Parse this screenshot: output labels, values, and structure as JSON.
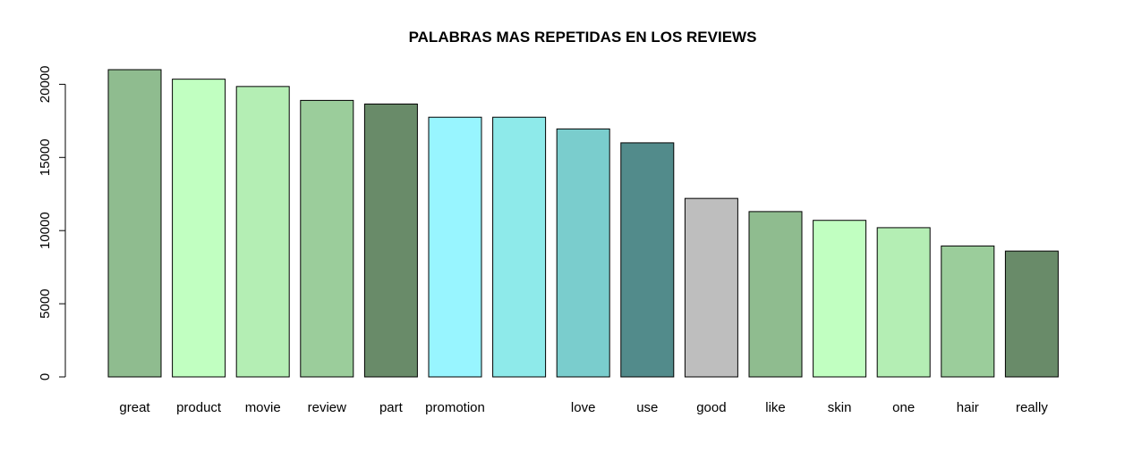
{
  "chart_data": {
    "type": "bar",
    "title": "PALABRAS MAS REPETIDAS EN LOS REVIEWS",
    "xlabel": "",
    "ylabel": "",
    "ylim": [
      0,
      21000
    ],
    "yticks": [
      0,
      5000,
      10000,
      15000,
      20000
    ],
    "yticks_labels": [
      "0",
      "5000",
      "10000",
      "15000",
      "20000"
    ],
    "grid": false,
    "categories": [
      "great",
      "product",
      "movie",
      "review",
      "part",
      "promotion",
      "",
      "love",
      "use",
      "good",
      "like",
      "skin",
      "one",
      "hair",
      "really"
    ],
    "values": [
      21000,
      20350,
      19850,
      18900,
      18650,
      17750,
      17750,
      16950,
      16000,
      12200,
      11300,
      10700,
      10200,
      8950,
      8600
    ],
    "colors": [
      "#8fbc8f",
      "#c1ffc1",
      "#b4eeb4",
      "#9bcd9b",
      "#698b69",
      "#98f5ff",
      "#8eeaea",
      "#7acdcd",
      "#528b8b",
      "#bebebe",
      "#8fbc8f",
      "#c1ffc1",
      "#b4eeb4",
      "#9bcd9b",
      "#698b69"
    ]
  }
}
